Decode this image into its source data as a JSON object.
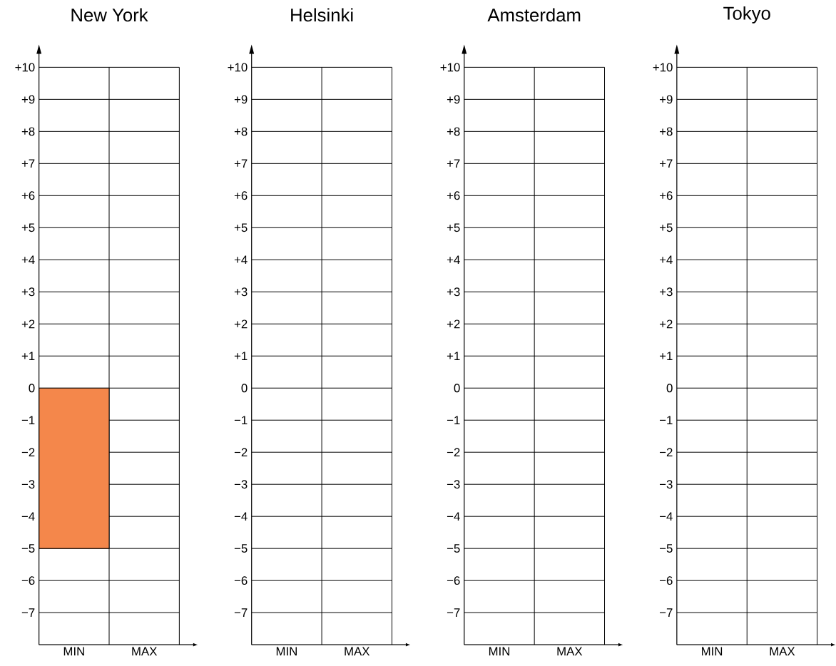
{
  "chart_data": [
    {
      "type": "bar",
      "title": "New York",
      "categories": [
        "MIN",
        "MAX"
      ],
      "values": [
        -5,
        null
      ],
      "color": "#f4874b",
      "ylim": [
        -8,
        10
      ],
      "grid": true,
      "yticks": [
        {
          "value": 10,
          "label": "+10"
        },
        {
          "value": 9,
          "label": "+9"
        },
        {
          "value": 8,
          "label": "+8"
        },
        {
          "value": 7,
          "label": "+7"
        },
        {
          "value": 6,
          "label": "+6"
        },
        {
          "value": 5,
          "label": "+5"
        },
        {
          "value": 4,
          "label": "+4"
        },
        {
          "value": 3,
          "label": "+3"
        },
        {
          "value": 2,
          "label": "+2"
        },
        {
          "value": 1,
          "label": "+1"
        },
        0,
        {
          "value": -1,
          "label": "−1"
        },
        {
          "value": -2,
          "label": "−2"
        },
        {
          "value": -3,
          "label": "−3"
        },
        {
          "value": -4,
          "label": "−4"
        },
        {
          "value": -5,
          "label": "−5"
        },
        {
          "value": -6,
          "label": "−6"
        },
        {
          "value": -7,
          "label": "−7"
        }
      ]
    },
    {
      "type": "bar",
      "title": "Helsinki",
      "categories": [
        "MIN",
        "MAX"
      ],
      "values": [
        null,
        null
      ],
      "ylim": [
        -8,
        10
      ],
      "grid": true,
      "yticks": [
        {
          "value": 10,
          "label": "+10"
        },
        {
          "value": 9,
          "label": "+9"
        },
        {
          "value": 8,
          "label": "+8"
        },
        {
          "value": 7,
          "label": "+7"
        },
        {
          "value": 6,
          "label": "+6"
        },
        {
          "value": 5,
          "label": "+5"
        },
        {
          "value": 4,
          "label": "+4"
        },
        {
          "value": 3,
          "label": "+3"
        },
        {
          "value": 2,
          "label": "+2"
        },
        {
          "value": 1,
          "label": "+1"
        },
        0,
        {
          "value": -1,
          "label": "−1"
        },
        {
          "value": -2,
          "label": "−2"
        },
        {
          "value": -3,
          "label": "−3"
        },
        {
          "value": -4,
          "label": "−4"
        },
        {
          "value": -5,
          "label": "−5"
        },
        {
          "value": -6,
          "label": "−6"
        },
        {
          "value": -7,
          "label": "−7"
        }
      ]
    },
    {
      "type": "bar",
      "title": "Amsterdam",
      "categories": [
        "MIN",
        "MAX"
      ],
      "values": [
        null,
        null
      ],
      "ylim": [
        -8,
        10
      ],
      "grid": true,
      "yticks": [
        {
          "value": 10,
          "label": "+10"
        },
        {
          "value": 9,
          "label": "+9"
        },
        {
          "value": 8,
          "label": "+8"
        },
        {
          "value": 7,
          "label": "+7"
        },
        {
          "value": 6,
          "label": "+6"
        },
        {
          "value": 5,
          "label": "+5"
        },
        {
          "value": 4,
          "label": "+4"
        },
        {
          "value": 3,
          "label": "+3"
        },
        {
          "value": 2,
          "label": "+2"
        },
        {
          "value": 1,
          "label": "+1"
        },
        0,
        {
          "value": -1,
          "label": "−1"
        },
        {
          "value": -2,
          "label": "−2"
        },
        {
          "value": -3,
          "label": "−3"
        },
        {
          "value": -4,
          "label": "−4"
        },
        {
          "value": -5,
          "label": "−5"
        },
        {
          "value": -6,
          "label": "−6"
        },
        {
          "value": -7,
          "label": "−7"
        }
      ]
    },
    {
      "type": "bar",
      "title": "Tokyo",
      "categories": [
        "MIN",
        "MAX"
      ],
      "values": [
        null,
        null
      ],
      "ylim": [
        -8,
        10
      ],
      "grid": true,
      "yticks": [
        {
          "value": 10,
          "label": "+10"
        },
        {
          "value": 9,
          "label": "+9"
        },
        {
          "value": 8,
          "label": "+8"
        },
        {
          "value": 7,
          "label": "+7"
        },
        {
          "value": 6,
          "label": "+6"
        },
        {
          "value": 5,
          "label": "+5"
        },
        {
          "value": 4,
          "label": "+4"
        },
        {
          "value": 3,
          "label": "+3"
        },
        {
          "value": 2,
          "label": "+2"
        },
        {
          "value": 1,
          "label": "+1"
        },
        0,
        {
          "value": -1,
          "label": "−1"
        },
        {
          "value": -2,
          "label": "−2"
        },
        {
          "value": -3,
          "label": "−3"
        },
        {
          "value": -4,
          "label": "−4"
        },
        {
          "value": -5,
          "label": "−5"
        },
        {
          "value": -6,
          "label": "−6"
        },
        {
          "value": -7,
          "label": "−7"
        }
      ]
    }
  ]
}
